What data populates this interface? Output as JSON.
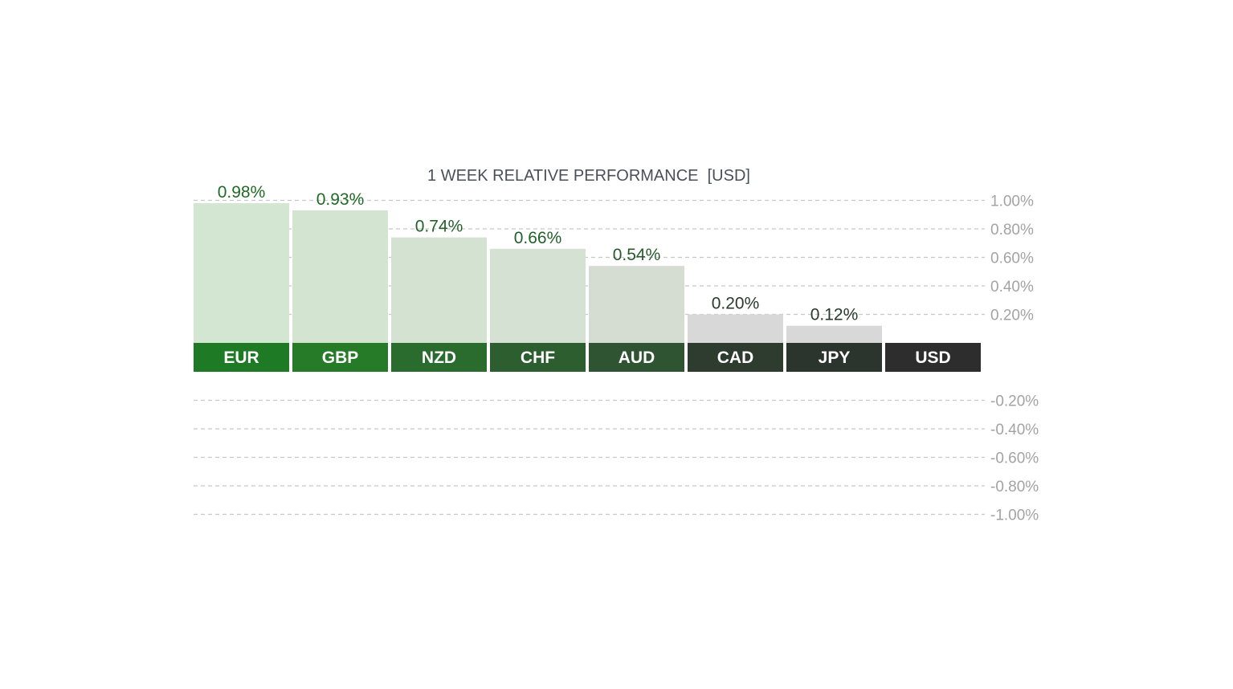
{
  "chart_data": {
    "type": "bar",
    "title": "1 WEEK RELATIVE PERFORMANCE  [USD]",
    "categories": [
      "EUR",
      "GBP",
      "NZD",
      "CHF",
      "AUD",
      "CAD",
      "JPY",
      "USD"
    ],
    "values": [
      0.98,
      0.93,
      0.74,
      0.66,
      0.54,
      0.2,
      0.12,
      0
    ],
    "value_labels": [
      "0.98%",
      "0.93%",
      "0.74%",
      "0.66%",
      "0.54%",
      "0.20%",
      "0.12%",
      ""
    ],
    "ylim": [
      -1.0,
      1.0
    ],
    "ticks": [
      {
        "value": 1.0,
        "label": "1.00%"
      },
      {
        "value": 0.8,
        "label": "0.80%"
      },
      {
        "value": 0.6,
        "label": "0.60%"
      },
      {
        "value": 0.4,
        "label": "0.40%"
      },
      {
        "value": 0.2,
        "label": "0.20%"
      },
      {
        "value": -0.2,
        "label": "-0.20%"
      },
      {
        "value": -0.4,
        "label": "-0.40%"
      },
      {
        "value": -0.6,
        "label": "-0.60%"
      },
      {
        "value": -0.8,
        "label": "-0.80%"
      },
      {
        "value": -1.0,
        "label": "-1.00%"
      }
    ],
    "grid": true,
    "colors": {
      "label_bg": [
        "#1e7a24",
        "#257b27",
        "#2a6b2e",
        "#2c5e30",
        "#2f5432",
        "#2e3c30",
        "#2c342e",
        "#2d2d2d"
      ],
      "bar_fill": [
        "#d3e6d1",
        "#d3e4d0",
        "#d4e2d2",
        "#d5e1d3",
        "#d5ddd3",
        "#d8d8d8",
        "#d8d8d8",
        "#d8d8d8"
      ],
      "value_text": [
        "#1f6b24",
        "#1f6b24",
        "#23612a",
        "#24602b",
        "#245a2c",
        "#2b3a30",
        "#2b3a30",
        "#2b3a30"
      ],
      "grid": "#c8c8c8",
      "tick_text": "#a3a3a3",
      "title_text": "#4a4f5a"
    }
  }
}
